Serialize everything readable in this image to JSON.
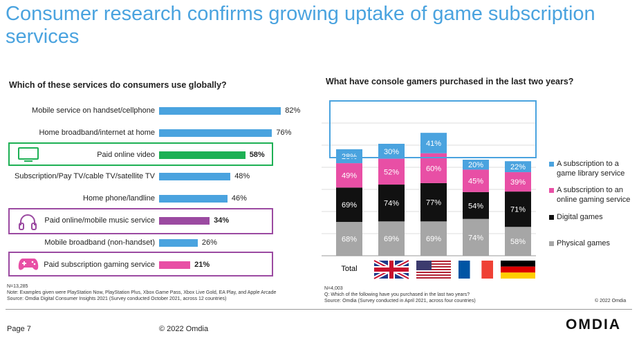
{
  "title": "Consumer research confirms growing uptake of game subscription services",
  "colors": {
    "blue": "#4aa3df",
    "green": "#1db054",
    "purple": "#9b4aa1",
    "pink": "#e84fa5",
    "black": "#111111",
    "gray": "#a6a6a6"
  },
  "left_notes": {
    "n": "N=13,285",
    "note": "Note: Examples given were PlayStation Now, PlayStation Plus, Xbox Game Pass, Xbox Live Gold, EA Play, and Apple Arcade",
    "source": "Source: Omdia Digital Consumer Insights 2021 (Survey conducted October 2021, across 12 countries)"
  },
  "right_notes": {
    "n": "N=4,003",
    "q": "Q: Which of the following have you purchased in the last two years?",
    "source": "Source: Omdia (Survey conducted in April 2021, across four countries)",
    "copyright": "© 2022 Omdia"
  },
  "footer": {
    "page": "Page 7",
    "copyright": "© 2022 Omdia",
    "logo": "OMDIA"
  },
  "chart_data": [
    {
      "type": "bar",
      "orientation": "horizontal",
      "title": "Which of these services do consumers use globally?",
      "categories": [
        "Mobile service on handset/cellphone",
        "Home broadband/internet at home",
        "Paid online video",
        "Subscription/Pay TV/cable TV/satellite TV",
        "Home phone/landline",
        "Paid online/mobile music service",
        "Mobile broadband (non-handset)",
        "Paid subscription gaming service"
      ],
      "values": [
        82,
        76,
        58,
        48,
        46,
        34,
        26,
        21
      ],
      "value_labels": [
        "82%",
        "76%",
        "58%",
        "48%",
        "46%",
        "34%",
        "26%",
        "21%"
      ],
      "highlights": [
        "",
        "",
        "video",
        "",
        "",
        "music",
        "",
        "gaming"
      ],
      "xlim": [
        0,
        100
      ]
    },
    {
      "type": "bar",
      "stacked": true,
      "title": "What have console gamers purchased in the last two years?",
      "categories": [
        "Total",
        "UK",
        "US",
        "France",
        "Germany"
      ],
      "series": [
        {
          "name": "Physical games",
          "values": [
            68,
            69,
            69,
            74,
            58
          ],
          "labels": [
            "68%",
            "69%",
            "69%",
            "74%",
            "58%"
          ]
        },
        {
          "name": "Digital games",
          "values": [
            69,
            74,
            77,
            54,
            71
          ],
          "labels": [
            "69%",
            "74%",
            "77%",
            "54%",
            "71%"
          ]
        },
        {
          "name": "A subscription to an online gaming service",
          "values": [
            49,
            52,
            60,
            45,
            39
          ],
          "labels": [
            "49%",
            "52%",
            "60%",
            "45%",
            "39%"
          ]
        },
        {
          "name": "A subscription to a game library service",
          "values": [
            28,
            30,
            41,
            20,
            22
          ],
          "labels": [
            "28%",
            "30%",
            "41%",
            "20%",
            "22%"
          ]
        }
      ],
      "legend": "right"
    }
  ]
}
